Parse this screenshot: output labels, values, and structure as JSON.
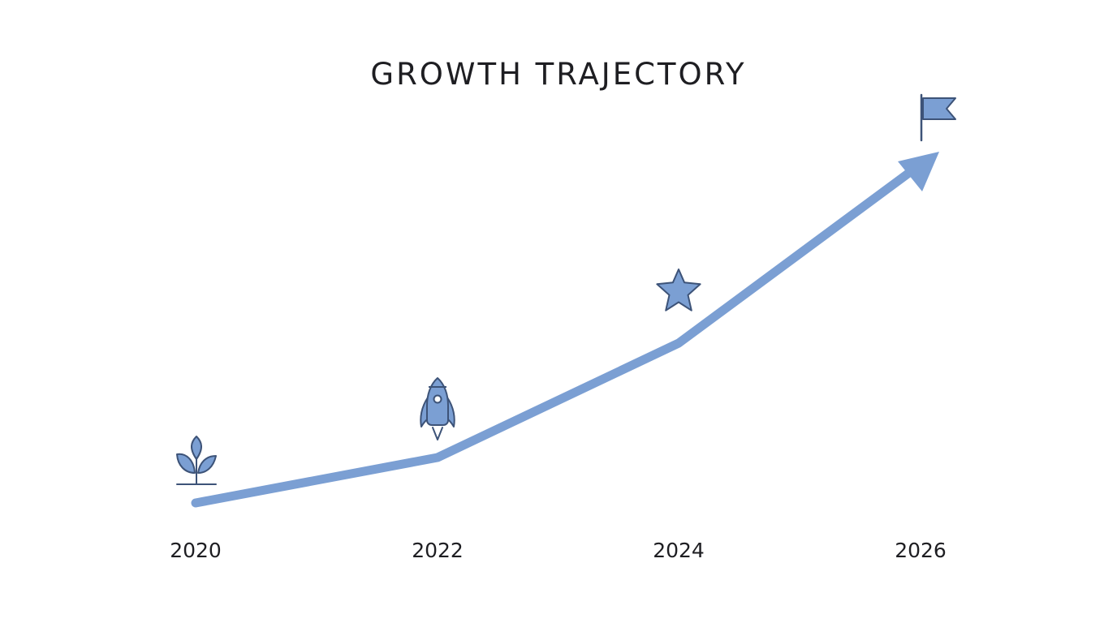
{
  "title": "GROWTH TRAJECTORY",
  "colors": {
    "line": "#7b9fd3",
    "icon_fill": "#7b9fd3",
    "icon_stroke": "#3d5378",
    "text": "#1e1e22",
    "background": "#ffffff"
  },
  "milestones": [
    {
      "year": "2020",
      "icon": "sprout-icon"
    },
    {
      "year": "2022",
      "icon": "rocket-icon"
    },
    {
      "year": "2024",
      "icon": "star-icon"
    },
    {
      "year": "2026",
      "icon": "flag-icon"
    }
  ]
}
